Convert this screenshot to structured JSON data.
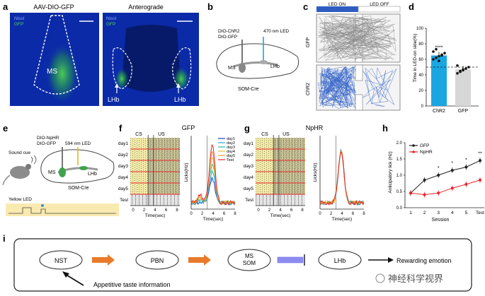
{
  "panels": {
    "a": {
      "letter": "a",
      "title_left": "AAV-DIO-GFP",
      "title_right": "Anterograde",
      "legend_nissl": "Nissl",
      "legend_gfp": "GFP",
      "label_ms": "MS",
      "label_lhb1": "LHb",
      "label_lhb2": "LHb"
    },
    "b": {
      "letter": "b",
      "virus1": "DIO-ChR2",
      "virus2": "DIO-GFP",
      "led": "470 nm LED",
      "region_ms": "MS",
      "region_lhb": "LHb",
      "mouse": "SOM-Cre"
    },
    "c": {
      "letter": "c",
      "led_on": "LED ON",
      "led_off": "LED OFF",
      "row1": "GFP",
      "row2": "ChR2"
    },
    "e": {
      "letter": "e",
      "sound": "Sound cue",
      "virus1": "DIO-NpHR",
      "virus2": "DIO-GFP",
      "led": "594 nm LED",
      "region_ms": "MS",
      "region_lhb": "LHb",
      "mouse": "SOM-Cre",
      "yellow_led": "Yellow LED"
    },
    "f": {
      "letter": "f",
      "cs": "CS",
      "us": "US",
      "title": "GFP",
      "days": [
        "day1",
        "day2",
        "day3",
        "day4",
        "day5",
        "Test"
      ],
      "xlabel": "Time(sec)",
      "ylabel": "Licks(Hz)",
      "ticks": [
        "0",
        "2",
        "4",
        "6",
        "8"
      ],
      "legend": [
        "day1",
        "day2",
        "day3",
        "day4",
        "day5",
        "Test"
      ]
    },
    "g": {
      "letter": "g",
      "cs": "CS",
      "us": "US",
      "title": "NpHR",
      "days": [
        "day1",
        "day2",
        "day3",
        "day4",
        "day5",
        "Test"
      ],
      "xlabel": "Time(sec)",
      "ylabel": "Licks(Hz)",
      "ticks": [
        "0",
        "2",
        "4",
        "6",
        "8"
      ]
    },
    "i": {
      "letter": "i",
      "nst": "NST",
      "pbn": "PBN",
      "ms": "MS",
      "som": "SOM",
      "lhb": "LHb",
      "reward": "Rewarding emotion",
      "appetitive": "Appetitive taste information",
      "watermark": "神经科学视界"
    }
  },
  "chart_data": [
    {
      "type": "bar",
      "panel": "d",
      "letter": "d",
      "categories": [
        "ChR2",
        "GFP"
      ],
      "values": [
        65,
        47
      ],
      "points": {
        "ChR2": [
          60,
          62,
          64,
          66,
          68,
          70,
          73,
          58,
          65
        ],
        "GFP": [
          42,
          44,
          46,
          48,
          50,
          52,
          45,
          47
        ]
      },
      "ylabel": "Time in LED-on side(%)",
      "ylim": [
        0,
        100
      ],
      "yticks": [
        "0",
        "20",
        "40",
        "60",
        "80",
        "100"
      ],
      "significance": "****",
      "reference_line": 50,
      "colors": {
        "ChR2": "#1aa6e0",
        "GFP": "#d7d7d7"
      }
    },
    {
      "type": "line",
      "panel": "h",
      "letter": "h",
      "categories": [
        "1",
        "2",
        "3",
        "4",
        "5",
        "Test"
      ],
      "series": [
        {
          "name": "GFP",
          "values": [
            0.45,
            0.85,
            1.0,
            1.15,
            1.25,
            1.45
          ],
          "color": "#222222"
        },
        {
          "name": "NpHR",
          "values": [
            0.45,
            0.4,
            0.45,
            0.6,
            0.72,
            0.85
          ],
          "color": "#e8262a"
        }
      ],
      "significance": [
        "",
        "",
        "*",
        "*",
        "*",
        "**"
      ],
      "xlabel": "Session",
      "ylabel": "Anticipatory lick (Hz)",
      "ylim": [
        0,
        2
      ],
      "yticks": [
        "0.0",
        "0.5",
        "1.0",
        "1.5",
        "2.0"
      ]
    }
  ],
  "colors": {
    "blue_bg": "#0b2aa8",
    "raster_bg": "#f3eaa8",
    "led_bar": "#f9eab0",
    "arrow": "#e87a2b",
    "inhib": "#6e6ee8"
  }
}
